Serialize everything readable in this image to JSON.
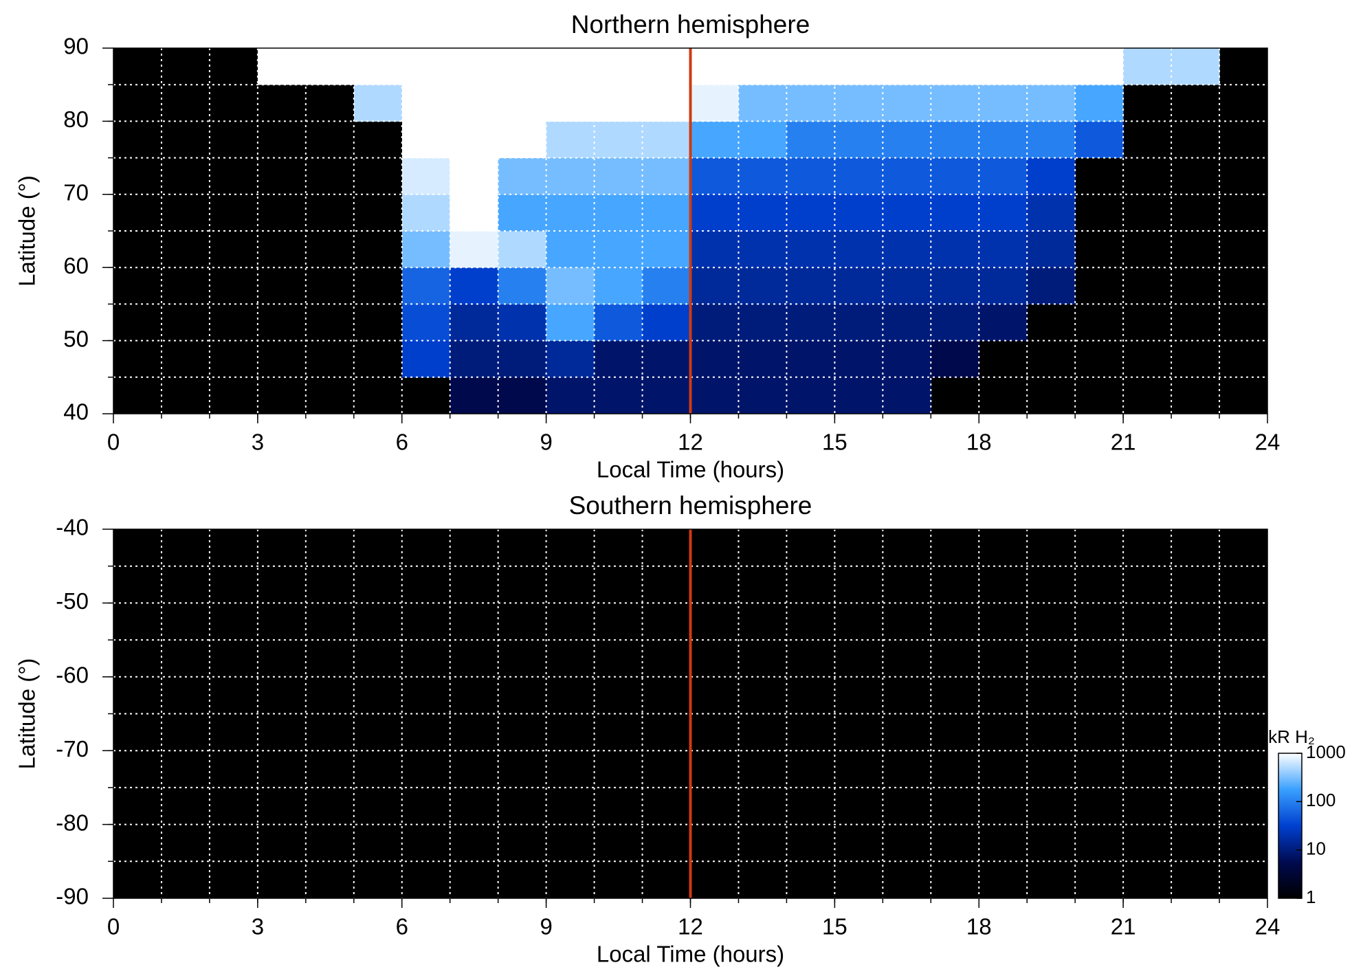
{
  "chart_data": [
    {
      "type": "heatmap",
      "title": "Northern hemisphere",
      "xlabel": "Local Time (hours)",
      "ylabel": "Latitude (°)",
      "xlim": [
        0,
        24
      ],
      "xticks": [
        0,
        3,
        6,
        9,
        12,
        15,
        18,
        21,
        24
      ],
      "ylim": [
        40,
        90
      ],
      "yticks": [
        40,
        50,
        60,
        70,
        80,
        90
      ],
      "xgrid": [
        1,
        2,
        3,
        4,
        5,
        6,
        7,
        8,
        9,
        10,
        11,
        12,
        13,
        14,
        15,
        16,
        17,
        18,
        19,
        20,
        21,
        22,
        23
      ],
      "ygrid": [
        45,
        50,
        55,
        60,
        65,
        70,
        75,
        80,
        85
      ],
      "marker_x": 12,
      "marker_color": "#d03a10",
      "x_bins": [
        0,
        1,
        2,
        3,
        4,
        5,
        6,
        7,
        8,
        9,
        10,
        11,
        12,
        13,
        14,
        15,
        16,
        17,
        18,
        19,
        20,
        21,
        22,
        23,
        24
      ],
      "y_bins": [
        40,
        45,
        50,
        55,
        60,
        65,
        70,
        75,
        80,
        85,
        90
      ],
      "z": [
        [
          null,
          null,
          null,
          null,
          null,
          null,
          null,
          5,
          5,
          8,
          8,
          8,
          8,
          8,
          8,
          8,
          8,
          null,
          null,
          null,
          null,
          null,
          null,
          null
        ],
        [
          null,
          null,
          null,
          null,
          null,
          null,
          30,
          10,
          10,
          15,
          8,
          8,
          8,
          8,
          8,
          8,
          8,
          5,
          null,
          null,
          null,
          null,
          null,
          null
        ],
        [
          null,
          null,
          null,
          null,
          null,
          null,
          40,
          15,
          20,
          200,
          50,
          30,
          10,
          10,
          10,
          10,
          10,
          10,
          8,
          null,
          null,
          null,
          null,
          null
        ],
        [
          null,
          null,
          null,
          null,
          null,
          null,
          60,
          30,
          100,
          300,
          200,
          100,
          15,
          15,
          15,
          15,
          15,
          15,
          15,
          10,
          null,
          null,
          null,
          null
        ],
        [
          null,
          null,
          null,
          null,
          null,
          null,
          300,
          800,
          500,
          200,
          200,
          200,
          20,
          20,
          20,
          20,
          20,
          20,
          20,
          15,
          null,
          null,
          null,
          null
        ],
        [
          null,
          null,
          null,
          null,
          null,
          null,
          500,
          1000,
          200,
          200,
          200,
          200,
          30,
          30,
          30,
          30,
          30,
          30,
          30,
          20,
          null,
          null,
          null,
          null
        ],
        [
          null,
          null,
          null,
          null,
          null,
          null,
          700,
          1000,
          300,
          300,
          300,
          300,
          50,
          50,
          50,
          50,
          50,
          50,
          50,
          30,
          null,
          null,
          null,
          null
        ],
        [
          null,
          null,
          null,
          null,
          null,
          null,
          1000,
          1000,
          1000,
          500,
          500,
          500,
          200,
          200,
          100,
          100,
          100,
          100,
          100,
          100,
          50,
          null,
          null,
          null
        ],
        [
          null,
          null,
          null,
          null,
          null,
          500,
          1000,
          1000,
          1000,
          1000,
          1000,
          1000,
          800,
          300,
          300,
          300,
          300,
          300,
          300,
          300,
          200,
          null,
          null,
          null
        ],
        [
          null,
          null,
          null,
          1000,
          1000,
          1000,
          1000,
          1000,
          1000,
          1000,
          1000,
          1000,
          1000,
          1000,
          1000,
          1000,
          1000,
          1000,
          1000,
          1000,
          1000,
          500,
          500,
          null
        ]
      ]
    },
    {
      "type": "heatmap",
      "title": "Southern hemisphere",
      "xlabel": "Local Time (hours)",
      "ylabel": "Latitude (°)",
      "xlim": [
        0,
        24
      ],
      "xticks": [
        0,
        3,
        6,
        9,
        12,
        15,
        18,
        21,
        24
      ],
      "ylim": [
        -90,
        -40
      ],
      "yticks": [
        -90,
        -80,
        -70,
        -60,
        -50,
        -40
      ],
      "xgrid": [
        1,
        2,
        3,
        4,
        5,
        6,
        7,
        8,
        9,
        10,
        11,
        12,
        13,
        14,
        15,
        16,
        17,
        18,
        19,
        20,
        21,
        22,
        23
      ],
      "ygrid": [
        -85,
        -80,
        -75,
        -70,
        -65,
        -60,
        -55,
        -50,
        -45
      ],
      "marker_x": 12,
      "marker_color": "#d03a10",
      "colorbar": {
        "label": "kR H₂",
        "log": true,
        "lim": [
          1,
          1000
        ],
        "ticks": [
          1,
          10,
          100,
          1000
        ]
      }
    }
  ]
}
